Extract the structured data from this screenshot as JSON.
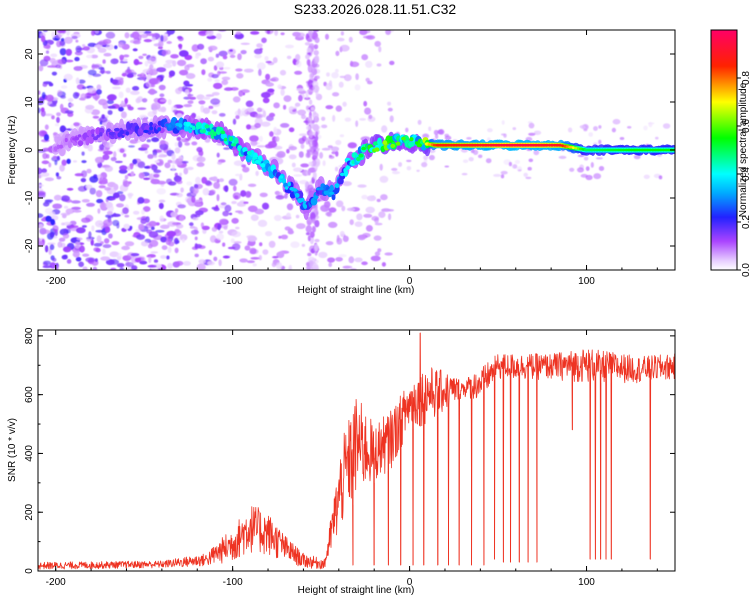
{
  "title": "S233.2026.028.11.51.C32",
  "chart_data": [
    {
      "type": "heatmap",
      "title": "S233.2026.028.11.51.C32",
      "xlabel": "Height of straight line (km)",
      "ylabel": "Frequency (Hz)",
      "xlim": [
        -210,
        150
      ],
      "ylim": [
        -25,
        25
      ],
      "xticks": [
        -200,
        -100,
        0,
        100
      ],
      "yticks": [
        -20,
        -10,
        0,
        10,
        20
      ],
      "colorbar": {
        "label": "Normalized spectral amplitude",
        "range": [
          0.0,
          1.0
        ],
        "ticks": [
          "0.0",
          "0.2",
          "0.4",
          "0.6",
          "0.8"
        ],
        "tick_values": [
          0.0,
          0.2,
          0.4,
          0.6,
          0.8
        ],
        "colors": [
          "#ffffff",
          "#cc66ff",
          "#6600ff",
          "#0000ff",
          "#00ffff",
          "#00ff00",
          "#ffff00",
          "#ff0000",
          "#ff0066"
        ]
      },
      "ridge": [
        {
          "x": -200,
          "y": 1,
          "amp": 0.1
        },
        {
          "x": -180,
          "y": 3,
          "amp": 0.15
        },
        {
          "x": -160,
          "y": 4,
          "amp": 0.2
        },
        {
          "x": -140,
          "y": 5,
          "amp": 0.25
        },
        {
          "x": -120,
          "y": 5,
          "amp": 0.45
        },
        {
          "x": -105,
          "y": 3,
          "amp": 0.5
        },
        {
          "x": -95,
          "y": 0,
          "amp": 0.45
        },
        {
          "x": -85,
          "y": -2,
          "amp": 0.4
        },
        {
          "x": -75,
          "y": -5,
          "amp": 0.4
        },
        {
          "x": -65,
          "y": -9,
          "amp": 0.35
        },
        {
          "x": -58,
          "y": -12,
          "amp": 0.35
        },
        {
          "x": -50,
          "y": -8,
          "amp": 0.3
        },
        {
          "x": -42,
          "y": -9,
          "amp": 0.35
        },
        {
          "x": -35,
          "y": -3,
          "amp": 0.4
        },
        {
          "x": -25,
          "y": 0,
          "amp": 0.55
        },
        {
          "x": -15,
          "y": 1,
          "amp": 0.65
        },
        {
          "x": -5,
          "y": 2,
          "amp": 0.6
        },
        {
          "x": 5,
          "y": 1.5,
          "amp": 0.55
        },
        {
          "x": 15,
          "y": 1,
          "amp": 0.85
        },
        {
          "x": 40,
          "y": 1,
          "amp": 0.9
        },
        {
          "x": 60,
          "y": 1,
          "amp": 0.95
        },
        {
          "x": 85,
          "y": 1,
          "amp": 0.9
        },
        {
          "x": 100,
          "y": 0,
          "amp": 0.5
        },
        {
          "x": 125,
          "y": 0,
          "amp": 0.55
        },
        {
          "x": 150,
          "y": 0,
          "amp": 0.55
        }
      ]
    },
    {
      "type": "line",
      "xlabel": "Height of straight line (km)",
      "ylabel": "SNR (10 * v/v)",
      "xlim": [
        -210,
        150
      ],
      "ylim": [
        0,
        820
      ],
      "xticks": [
        -200,
        -100,
        0,
        100
      ],
      "yticks": [
        0,
        200,
        400,
        600,
        800
      ],
      "series": [
        {
          "name": "SNR",
          "color": "#ee3322",
          "envelope": [
            {
              "x": -210,
              "lo": 5,
              "hi": 30
            },
            {
              "x": -140,
              "lo": 10,
              "hi": 35
            },
            {
              "x": -115,
              "lo": 15,
              "hi": 60
            },
            {
              "x": -100,
              "lo": 30,
              "hi": 150
            },
            {
              "x": -90,
              "lo": 60,
              "hi": 230
            },
            {
              "x": -80,
              "lo": 50,
              "hi": 200
            },
            {
              "x": -70,
              "lo": 30,
              "hi": 120
            },
            {
              "x": -60,
              "lo": 10,
              "hi": 60
            },
            {
              "x": -48,
              "lo": 5,
              "hi": 40
            },
            {
              "x": -38,
              "lo": 150,
              "hi": 450
            },
            {
              "x": -30,
              "lo": 250,
              "hi": 600
            },
            {
              "x": -20,
              "lo": 300,
              "hi": 500
            },
            {
              "x": -10,
              "lo": 350,
              "hi": 550
            },
            {
              "x": 0,
              "lo": 480,
              "hi": 650
            },
            {
              "x": 10,
              "lo": 500,
              "hi": 700
            },
            {
              "x": 20,
              "lo": 540,
              "hi": 680
            },
            {
              "x": 30,
              "lo": 590,
              "hi": 650
            },
            {
              "x": 40,
              "lo": 580,
              "hi": 690
            },
            {
              "x": 50,
              "lo": 650,
              "hi": 740
            },
            {
              "x": 80,
              "lo": 650,
              "hi": 740
            },
            {
              "x": 100,
              "lo": 640,
              "hi": 760
            },
            {
              "x": 130,
              "lo": 640,
              "hi": 730
            },
            {
              "x": 150,
              "lo": 650,
              "hi": 740
            }
          ],
          "dropouts": [
            {
              "x": -32,
              "value": 20
            },
            {
              "x": -20,
              "value": 20
            },
            {
              "x": -12,
              "value": 20
            },
            {
              "x": -5,
              "value": 20
            },
            {
              "x": 2,
              "value": 20
            },
            {
              "x": 8,
              "value": 20
            },
            {
              "x": 16,
              "value": 20
            },
            {
              "x": 22,
              "value": 20
            },
            {
              "x": 28,
              "value": 20
            },
            {
              "x": 35,
              "value": 20
            },
            {
              "x": 42,
              "value": 20
            },
            {
              "x": 48,
              "value": 40
            },
            {
              "x": 53,
              "value": 30
            },
            {
              "x": 57,
              "value": 30
            },
            {
              "x": 62,
              "value": 30
            },
            {
              "x": 67,
              "value": 30
            },
            {
              "x": 72,
              "value": 30
            },
            {
              "x": 92,
              "value": 480
            },
            {
              "x": 102,
              "value": 40
            },
            {
              "x": 105,
              "value": 40
            },
            {
              "x": 108,
              "value": 40
            },
            {
              "x": 111,
              "value": 40
            },
            {
              "x": 114,
              "value": 40
            },
            {
              "x": 136,
              "value": 40
            }
          ],
          "spikes": [
            {
              "x": 6,
              "value": 810
            }
          ]
        }
      ]
    }
  ]
}
